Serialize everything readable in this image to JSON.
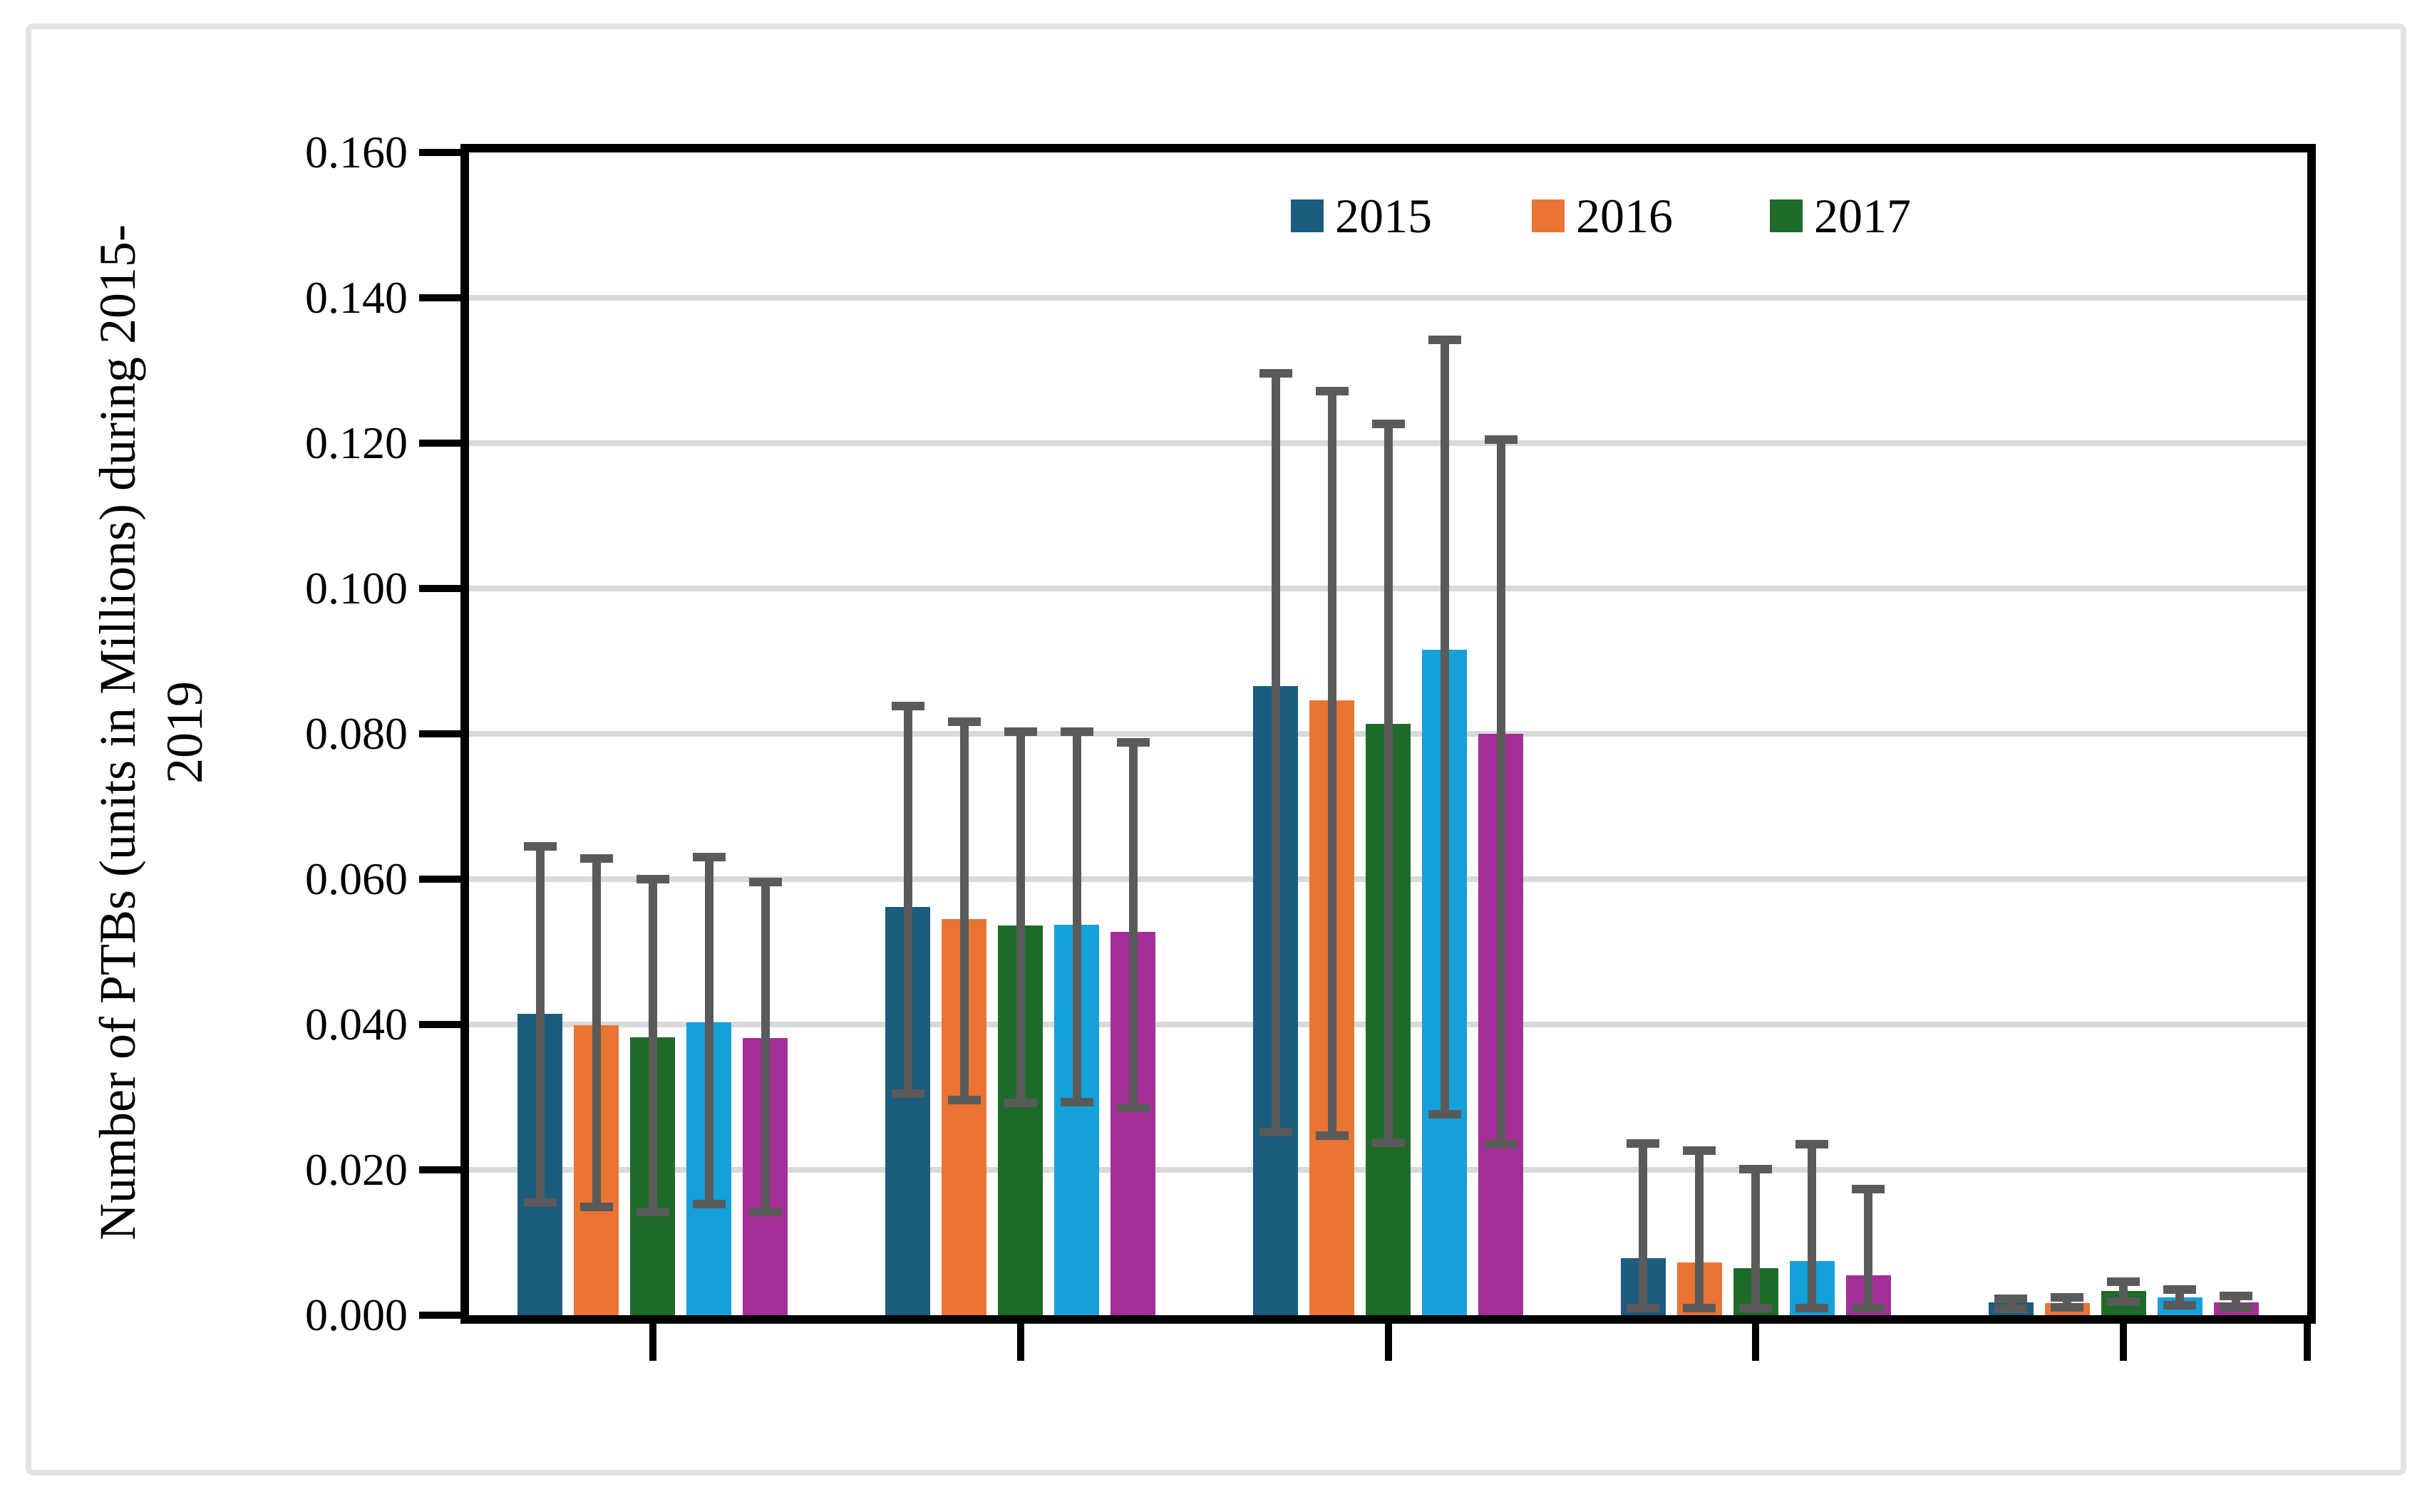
{
  "figure": {
    "background": "#FFFFFF",
    "border_color": "#E2E2E2"
  },
  "chart_data": {
    "type": "bar",
    "title": "",
    "ylabel_line1": "Number of PTBs (units in Millions) during 2015-",
    "ylabel_line2": "2019",
    "ylim": [
      0,
      0.16
    ],
    "ytick_step": 0.02,
    "ytick_labels": [
      "0.000",
      "0.020",
      "0.040",
      "0.060",
      "0.080",
      "0.100",
      "0.120",
      "0.140",
      "0.160"
    ],
    "grid": true,
    "gridline_color": "#D9D9D9",
    "error_bar_color": "#5A5A5A",
    "legend_position": "top-center-inside",
    "legend_visible_entries": [
      "2015",
      "2016",
      "2017"
    ],
    "categories": [
      "",
      "",
      "",
      "",
      ""
    ],
    "series": [
      {
        "name": "2015",
        "in_legend": true,
        "color": "#1C5C7E",
        "values": [
          0.0415,
          0.0562,
          0.0866,
          0.0078,
          0.0018
        ],
        "whisker_top": [
          0.0645,
          0.0838,
          0.1296,
          0.0236,
          0.0023
        ],
        "whisker_bottom": [
          0.0155,
          0.0305,
          0.0252,
          0.001,
          0.0009
        ]
      },
      {
        "name": "2016",
        "in_legend": true,
        "color": "#E97434",
        "values": [
          0.0399,
          0.0545,
          0.0846,
          0.0073,
          0.0017
        ],
        "whisker_top": [
          0.0628,
          0.0817,
          0.1272,
          0.0226,
          0.0025
        ],
        "whisker_bottom": [
          0.0149,
          0.0296,
          0.0247,
          0.001,
          0.0011
        ]
      },
      {
        "name": "2017",
        "in_legend": true,
        "color": "#1F6B2A",
        "values": [
          0.0382,
          0.0536,
          0.0814,
          0.0065,
          0.0033
        ],
        "whisker_top": [
          0.06,
          0.0803,
          0.1226,
          0.0201,
          0.0046
        ],
        "whisker_bottom": [
          0.0142,
          0.0292,
          0.0237,
          0.001,
          0.0019
        ]
      },
      {
        "name": "",
        "in_legend": false,
        "color": "#14A0D9",
        "values": [
          0.0403,
          0.0537,
          0.0916,
          0.0075,
          0.0025
        ],
        "whisker_top": [
          0.063,
          0.0803,
          0.1342,
          0.0235,
          0.0035
        ],
        "whisker_bottom": [
          0.0153,
          0.0293,
          0.0276,
          0.001,
          0.0014
        ]
      },
      {
        "name": "",
        "in_legend": false,
        "color": "#A42E97",
        "values": [
          0.0381,
          0.0527,
          0.08,
          0.0055,
          0.0018
        ],
        "whisker_top": [
          0.0596,
          0.0788,
          0.1205,
          0.0174,
          0.0026
        ],
        "whisker_bottom": [
          0.0142,
          0.0285,
          0.0235,
          0.001,
          0.0011
        ]
      }
    ]
  }
}
